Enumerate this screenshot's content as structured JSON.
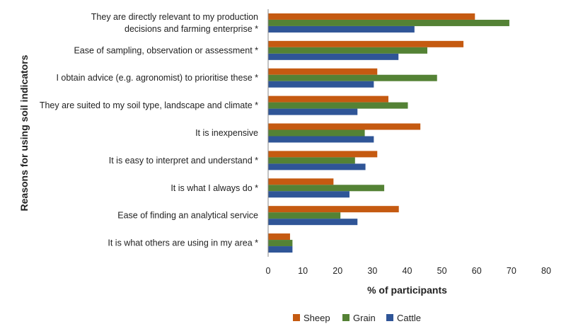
{
  "chart_data": {
    "type": "bar",
    "orientation": "horizontal",
    "categories": [
      [
        "They are directly relevant to my production",
        "decisions and farming enterprise *"
      ],
      [
        "Ease of sampling, observation or assessment *"
      ],
      [
        "I obtain advice (e.g. agronomist) to prioritise these *"
      ],
      [
        "They are suited to my soil type, landscape and climate *"
      ],
      [
        "It is inexpensive"
      ],
      [
        "It is easy to interpret and understand *"
      ],
      [
        "It is what I always do *"
      ],
      [
        "Ease of finding an analytical service"
      ],
      [
        "It is what others are using in my area *"
      ]
    ],
    "series": [
      {
        "name": "Sheep",
        "color": "#C55A11",
        "values": [
          59.5,
          56.2,
          31.4,
          34.6,
          43.8,
          31.4,
          18.8,
          37.6,
          6.3
        ]
      },
      {
        "name": "Grain",
        "color": "#548235",
        "values": [
          69.4,
          45.8,
          48.6,
          40.2,
          27.8,
          25.0,
          33.4,
          20.8,
          7.0
        ]
      },
      {
        "name": "Cattle",
        "color": "#2F5597",
        "values": [
          42.1,
          37.5,
          30.4,
          25.7,
          30.4,
          28.0,
          23.4,
          25.7,
          7.0
        ]
      }
    ],
    "xlabel": "% of participants",
    "ylabel": "Reasons for using soil indicators",
    "xlim": [
      0,
      80
    ],
    "xticks": [
      "0",
      "10",
      "20",
      "30",
      "40",
      "50",
      "60",
      "70",
      "80"
    ],
    "grid": false,
    "legend_position": "bottom"
  }
}
